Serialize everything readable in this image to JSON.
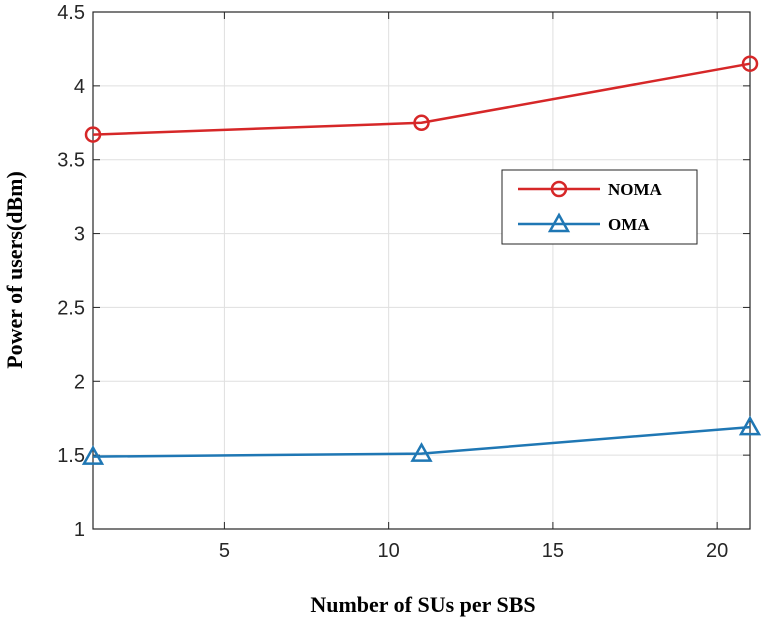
{
  "chart_data": {
    "type": "line",
    "title": "",
    "xlabel": "Number of SUs per SBS",
    "ylabel": "Power of users(dBm)",
    "xlim": [
      1,
      21
    ],
    "ylim": [
      1,
      4.5
    ],
    "xticks": [
      5,
      10,
      15,
      20
    ],
    "yticks": [
      1,
      1.5,
      2,
      2.5,
      3,
      3.5,
      4,
      4.5
    ],
    "xtick_labels": [
      "5",
      "10",
      "15",
      "20"
    ],
    "ytick_labels": [
      "1",
      "1.5",
      "2",
      "2.5",
      "3",
      "3.5",
      "4",
      "4.5"
    ],
    "grid": true,
    "legend_position": "center-right",
    "series": [
      {
        "name": "NOMA",
        "color": "#d62728",
        "marker": "circle",
        "x": [
          1,
          11,
          21
        ],
        "y": [
          3.67,
          3.75,
          4.15
        ]
      },
      {
        "name": "OMA",
        "color": "#1f77b4",
        "marker": "triangle",
        "x": [
          1,
          11,
          21
        ],
        "y": [
          1.49,
          1.51,
          1.69
        ]
      }
    ]
  }
}
